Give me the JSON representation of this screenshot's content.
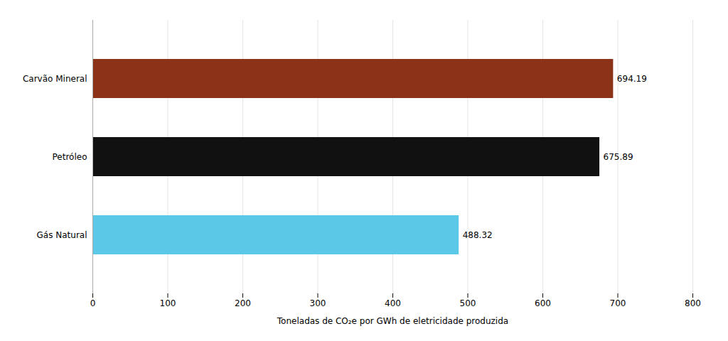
{
  "chart_data": {
    "type": "bar",
    "orientation": "horizontal",
    "xlabel": "Toneladas de CO₂e por GWh de eletricidade produzida",
    "categories": [
      "Gás Natural",
      "Petróleo",
      "Carvão Mineral"
    ],
    "values": [
      488.32,
      675.89,
      694.19
    ],
    "colors": [
      "#5bc8e8",
      "#111111",
      "#8b3219"
    ],
    "xlim": [
      0,
      800
    ],
    "xticks": [
      0,
      100,
      200,
      300,
      400,
      500,
      600,
      700,
      800
    ],
    "grid": true,
    "data_labels": true
  }
}
